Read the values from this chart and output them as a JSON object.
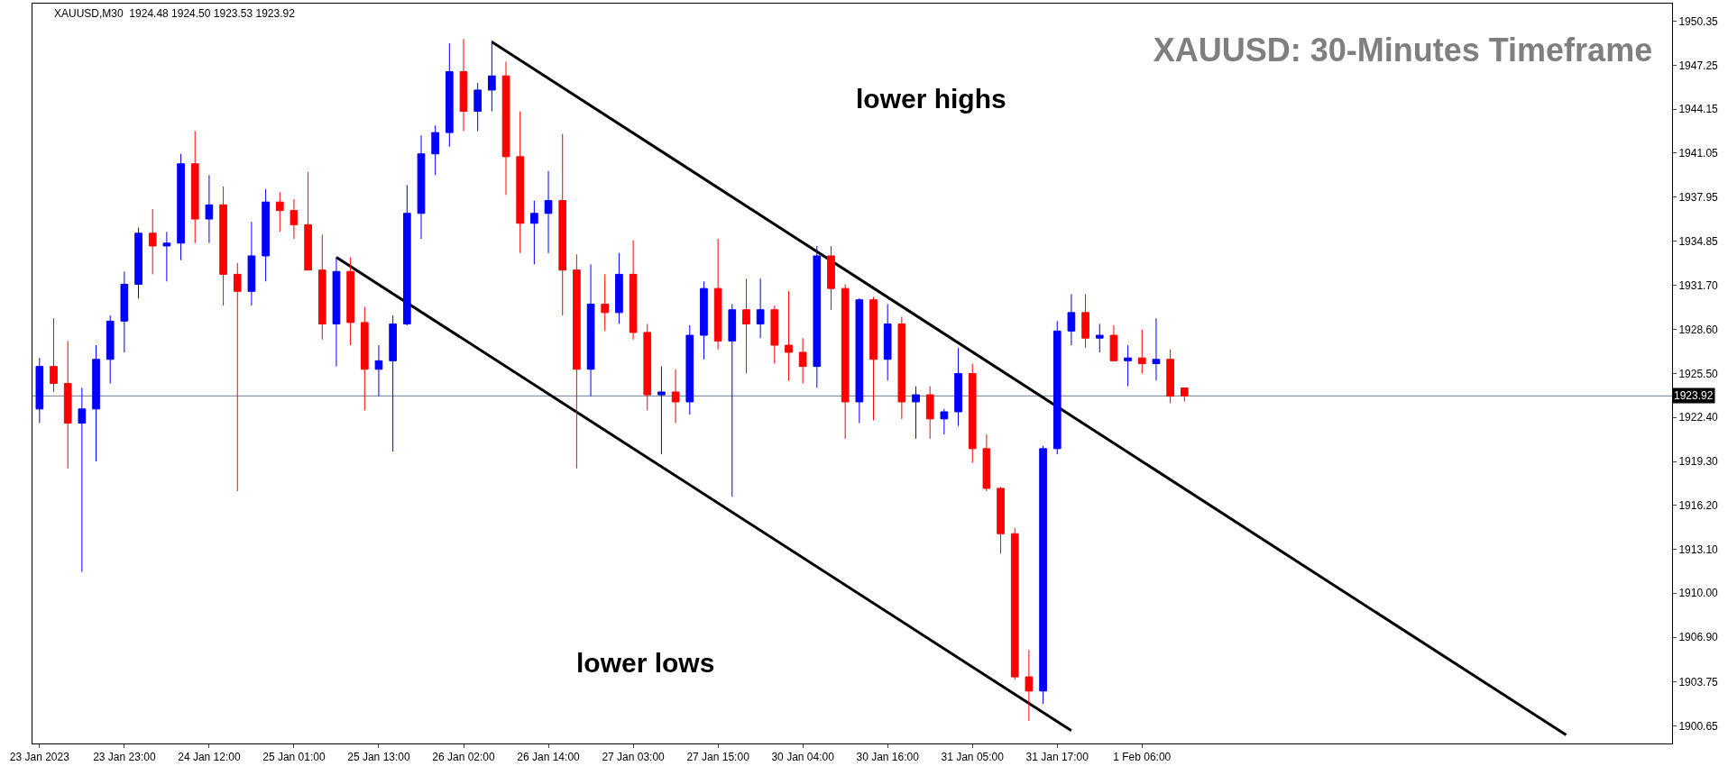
{
  "chart_data": {
    "type": "candlestick",
    "title": "XAUUSD: 30-Minutes Timeframe",
    "annotations": [
      "XAUUSD,M30  1924.48 1924.50 1923.53 1923.92",
      "lower highs",
      "lower lows"
    ],
    "categories": [
      "23 Jan 2023",
      null,
      null,
      null,
      null,
      null,
      "23 Jan 23:00",
      null,
      null,
      null,
      null,
      null,
      "24 Jan 12:00",
      null,
      null,
      null,
      null,
      null,
      "25 Jan 01:00",
      null,
      null,
      null,
      null,
      null,
      "25 Jan 13:00",
      null,
      null,
      null,
      null,
      null,
      "26 Jan 02:00",
      null,
      null,
      null,
      null,
      null,
      "26 Jan 14:00",
      null,
      null,
      null,
      null,
      null,
      "27 Jan 03:00",
      null,
      null,
      null,
      null,
      null,
      "27 Jan 15:00",
      null,
      null,
      null,
      null,
      null,
      "30 Jan 04:00",
      null,
      null,
      null,
      null,
      null,
      "30 Jan 16:00",
      null,
      null,
      null,
      null,
      null,
      "31 Jan 05:00",
      null,
      null,
      null,
      null,
      null,
      "31 Jan 17:00",
      null,
      null,
      null,
      null,
      null,
      "1 Feb 06:00",
      null,
      null,
      null,
      null,
      null,
      null,
      null,
      null,
      null,
      null,
      null,
      null,
      null,
      null,
      null,
      null,
      null,
      null,
      null,
      null,
      null,
      null,
      null,
      null,
      null,
      null,
      null,
      null,
      null,
      null,
      null,
      null,
      null,
      null,
      null,
      null,
      null
    ],
    "ohlc": [
      [
        1923.0,
        1926.6,
        1922.0,
        1926.0
      ],
      [
        1926.0,
        1929.4,
        1924.2,
        1924.8
      ],
      [
        1924.8,
        1927.8,
        1918.8,
        1922.0
      ],
      [
        1922.0,
        1924.5,
        1911.5,
        1923.0
      ],
      [
        1923.0,
        1927.5,
        1919.3,
        1926.5
      ],
      [
        1926.5,
        1929.6,
        1924.8,
        1929.2
      ],
      [
        1929.2,
        1932.7,
        1927.0,
        1931.8
      ],
      [
        1931.8,
        1935.8,
        1930.8,
        1935.4
      ],
      [
        1935.4,
        1937.1,
        1932.5,
        1934.5
      ],
      [
        1934.5,
        1935.5,
        1932.0,
        1934.7
      ],
      [
        1934.7,
        1941.0,
        1933.5,
        1940.3
      ],
      [
        1940.3,
        1942.6,
        1934.7,
        1936.4
      ],
      [
        1936.4,
        1939.5,
        1934.7,
        1937.4
      ],
      [
        1937.4,
        1938.7,
        1930.3,
        1932.5
      ],
      [
        1932.5,
        1933.3,
        1917.2,
        1931.3
      ],
      [
        1931.3,
        1936.2,
        1930.3,
        1933.8
      ],
      [
        1933.8,
        1938.5,
        1932.0,
        1937.6
      ],
      [
        1937.6,
        1938.3,
        1935.5,
        1937.0
      ],
      [
        1937.0,
        1937.8,
        1935.0,
        1936.0
      ],
      [
        1936.0,
        1939.7,
        1932.8,
        1932.8
      ],
      [
        1932.8,
        1935.3,
        1927.9,
        1929.0
      ],
      [
        1929.0,
        1933.7,
        1926.0,
        1932.7
      ],
      [
        1932.7,
        1933.7,
        1927.5,
        1929.1
      ],
      [
        1929.1,
        1930.2,
        1922.9,
        1925.8
      ],
      [
        1925.8,
        1927.5,
        1923.9,
        1926.4
      ],
      [
        1926.4,
        1929.6,
        1920.0,
        1929.0
      ],
      [
        1929.0,
        1938.8,
        1928.9,
        1936.8
      ],
      [
        1936.8,
        1942.3,
        1935.0,
        1941.0
      ],
      [
        1941.0,
        1943.0,
        1939.5,
        1942.5
      ],
      [
        1942.5,
        1948.8,
        1941.5,
        1946.8
      ],
      [
        1946.8,
        1949.1,
        1942.6,
        1944.0
      ],
      [
        1944.0,
        1946.0,
        1942.6,
        1945.5
      ],
      [
        1945.5,
        1949.0,
        1944.0,
        1946.5
      ],
      [
        1946.5,
        1947.5,
        1938.1,
        1940.8
      ],
      [
        1940.8,
        1944.0,
        1934.0,
        1936.1
      ],
      [
        1936.1,
        1937.7,
        1933.2,
        1936.8
      ],
      [
        1936.8,
        1939.8,
        1934.0,
        1937.7
      ],
      [
        1937.7,
        1942.4,
        1929.6,
        1932.8
      ],
      [
        1932.8,
        1933.9,
        1918.8,
        1925.8
      ],
      [
        1925.8,
        1933.2,
        1923.9,
        1930.4
      ],
      [
        1930.4,
        1932.5,
        1928.5,
        1929.8
      ],
      [
        1929.8,
        1934.0,
        1929.0,
        1932.5
      ],
      [
        1932.5,
        1934.9,
        1927.9,
        1928.4
      ],
      [
        1928.4,
        1929.0,
        1922.9,
        1924.0
      ],
      [
        1924.0,
        1926.0,
        1919.8,
        1924.2
      ],
      [
        1924.2,
        1925.8,
        1922.0,
        1923.5
      ],
      [
        1923.5,
        1928.9,
        1922.6,
        1928.2
      ],
      [
        1928.2,
        1932.0,
        1926.5,
        1931.5
      ],
      [
        1931.5,
        1935.0,
        1927.2,
        1927.8
      ],
      [
        1927.8,
        1930.4,
        1916.8,
        1930.0
      ],
      [
        1930.0,
        1932.2,
        1925.5,
        1929.0
      ],
      [
        1929.0,
        1932.2,
        1928.0,
        1930.0
      ],
      [
        1930.0,
        1930.3,
        1926.2,
        1927.5
      ],
      [
        1927.5,
        1931.3,
        1925.0,
        1927.0
      ],
      [
        1927.0,
        1928.0,
        1924.8,
        1926.0
      ],
      [
        1926.0,
        1934.5,
        1924.5,
        1933.8
      ],
      [
        1933.8,
        1934.5,
        1930.0,
        1931.5
      ],
      [
        1931.5,
        1931.8,
        1920.9,
        1923.5
      ],
      [
        1923.5,
        1930.8,
        1922.0,
        1930.7
      ],
      [
        1930.7,
        1930.9,
        1922.2,
        1926.5
      ],
      [
        1926.5,
        1930.4,
        1925.0,
        1929.0
      ],
      [
        1929.0,
        1929.5,
        1922.3,
        1923.5
      ],
      [
        1923.5,
        1924.6,
        1920.9,
        1924.0
      ],
      [
        1924.0,
        1924.6,
        1920.9,
        1922.3
      ],
      [
        1922.3,
        1923.0,
        1921.2,
        1922.8
      ],
      [
        1922.8,
        1927.3,
        1921.8,
        1925.5
      ],
      [
        1925.5,
        1926.2,
        1919.2,
        1920.2
      ],
      [
        1920.2,
        1921.2,
        1917.2,
        1917.4
      ],
      [
        1917.4,
        1917.5,
        1912.8,
        1914.2
      ],
      [
        1914.2,
        1914.6,
        1903.9,
        1904.1
      ],
      [
        1904.1,
        1906.0,
        1901.0,
        1903.1
      ],
      [
        1903.1,
        1920.4,
        1902.2,
        1920.2
      ],
      [
        1920.2,
        1929.2,
        1919.8,
        1928.5
      ],
      [
        1928.5,
        1931.1,
        1927.5,
        1929.8
      ],
      [
        1929.8,
        1931.1,
        1927.3,
        1928.0
      ],
      [
        1928.0,
        1929.0,
        1927.0,
        1928.2
      ],
      [
        1928.2,
        1928.9,
        1926.4,
        1926.4
      ],
      [
        1926.4,
        1927.5,
        1924.6,
        1926.6
      ],
      [
        1926.6,
        1928.6,
        1925.5,
        1926.2
      ],
      [
        1926.2,
        1929.4,
        1925.0,
        1926.5
      ],
      [
        1926.5,
        1927.2,
        1923.4,
        1923.9
      ],
      [
        1924.48,
        1924.5,
        1923.53,
        1923.92
      ],
      null,
      null,
      null,
      null,
      null,
      null,
      null,
      null,
      null,
      null,
      null,
      null,
      null,
      null,
      null,
      null,
      null,
      null,
      null,
      null,
      null,
      null,
      null,
      null,
      null,
      null,
      null,
      null,
      null,
      null,
      null,
      null,
      null,
      null
    ],
    "colors": [
      "#0000ff",
      "#ff0000",
      "#ff0000",
      "#0000ff",
      "#0000ff",
      "#0000ff",
      "#0000ff",
      "#0000ff",
      "#ff0000",
      "#0000ff",
      "#0000ff",
      "#ff0000",
      "#0000ff",
      "#ff0000",
      "#ff0000",
      "#0000ff",
      "#0000ff",
      "#ff0000",
      "#ff0000",
      "#ff0000",
      "#ff0000",
      "#0000ff",
      "#ff0000",
      "#ff0000",
      "#0000ff",
      "#0000ff",
      "#0000ff",
      "#0000ff",
      "#0000ff",
      "#0000ff",
      "#ff0000",
      "#0000ff",
      "#0000ff",
      "#ff0000",
      "#ff0000",
      "#0000ff",
      "#0000ff",
      "#ff0000",
      "#ff0000",
      "#0000ff",
      "#ff0000",
      "#0000ff",
      "#ff0000",
      "#ff0000",
      "#0000ff",
      "#ff0000",
      "#0000ff",
      "#0000ff",
      "#ff0000",
      "#0000ff",
      "#ff0000",
      "#0000ff",
      "#ff0000",
      "#ff0000",
      "#ff0000",
      "#0000ff",
      "#ff0000",
      "#ff0000",
      "#0000ff",
      "#ff0000",
      "#0000ff",
      "#ff0000",
      "#0000ff",
      "#ff0000",
      "#0000ff",
      "#0000ff",
      "#ff0000",
      "#ff0000",
      "#ff0000",
      "#ff0000",
      "#ff0000",
      "#0000ff",
      "#0000ff",
      "#0000ff",
      "#ff0000",
      "#0000ff",
      "#ff0000",
      "#0000ff",
      "#ff0000",
      "#0000ff",
      "#ff0000",
      "#ff0000",
      null,
      null,
      null,
      null,
      null,
      null,
      null,
      null,
      null,
      null,
      null,
      null,
      null,
      null,
      null,
      null,
      null,
      null,
      null,
      null,
      null,
      null,
      null,
      null,
      null,
      null,
      null,
      null,
      null,
      null,
      null,
      null,
      null,
      null
    ],
    "series": [
      {
        "type": "line",
        "color": "#000000",
        "values": [
          null,
          null,
          null,
          null,
          null,
          null,
          null,
          null,
          null,
          null,
          null,
          null,
          null,
          null,
          null,
          null,
          null,
          null,
          null,
          null,
          null,
          1933.7,
          null,
          null,
          null,
          null,
          null,
          null,
          null,
          null,
          null,
          null,
          null,
          null,
          null,
          null,
          null,
          null,
          null,
          null,
          null,
          null,
          null,
          null,
          null,
          null,
          null,
          null,
          null,
          null,
          null,
          null,
          null,
          null,
          null,
          null,
          null,
          null,
          null,
          null,
          null,
          null,
          null,
          null,
          null,
          null,
          null,
          null,
          null,
          null,
          null,
          null,
          null,
          1900.3,
          null,
          null,
          null,
          null,
          null,
          null,
          null,
          null,
          null,
          null,
          null,
          null,
          null,
          null,
          null,
          null,
          null,
          null,
          null,
          null,
          null,
          null,
          null,
          null,
          null,
          null,
          null,
          null,
          null,
          null,
          null,
          null,
          null,
          null,
          null,
          null,
          null,
          null,
          null,
          null,
          null,
          null
        ]
      },
      {
        "type": "line",
        "color": "#000000",
        "values": [
          null,
          null,
          null,
          null,
          null,
          null,
          null,
          null,
          null,
          null,
          null,
          null,
          null,
          null,
          null,
          null,
          null,
          null,
          null,
          null,
          null,
          null,
          null,
          null,
          null,
          null,
          null,
          null,
          null,
          null,
          null,
          null,
          1948.9,
          null,
          null,
          null,
          null,
          null,
          null,
          null,
          null,
          null,
          null,
          null,
          null,
          null,
          null,
          null,
          null,
          null,
          null,
          null,
          null,
          null,
          null,
          null,
          null,
          null,
          null,
          null,
          null,
          null,
          null,
          null,
          null,
          null,
          null,
          null,
          null,
          null,
          null,
          null,
          null,
          null,
          null,
          null,
          null,
          null,
          null,
          null,
          null,
          null,
          null,
          null,
          null,
          null,
          null,
          null,
          null,
          null,
          null,
          null,
          null,
          null,
          null,
          null,
          null,
          null,
          null,
          null,
          null,
          null,
          null,
          null,
          null,
          null,
          null,
          null,
          1900.0,
          null,
          null,
          null,
          null,
          null,
          null,
          null
        ]
      }
    ],
    "ylim": [
      1899.4,
      1951.6
    ],
    "yticks": [
      1900.65,
      1903.75,
      {
        "value": 1906.9,
        "label": "1906.90"
      },
      {
        "value": 1910,
        "label": "1910.00"
      },
      {
        "value": 1913.1,
        "label": "1913.10"
      },
      {
        "value": 1916.2,
        "label": "1916.20"
      },
      {
        "value": 1919.3,
        "label": "1919.30"
      },
      {
        "value": 1922.4,
        "label": "1922.40"
      },
      {
        "value": 1925.5,
        "label": "1925.50"
      },
      {
        "value": 1928.6,
        "label": "1928.60"
      },
      {
        "value": 1931.7,
        "label": "1931.70"
      },
      1934.85,
      1937.95,
      1941.05,
      1944.15,
      1947.25,
      1950.35
    ],
    "ref_lines": [
      {
        "axis": "y",
        "value": 1923.92,
        "label": "1923.92",
        "color": "#708090"
      }
    ]
  }
}
